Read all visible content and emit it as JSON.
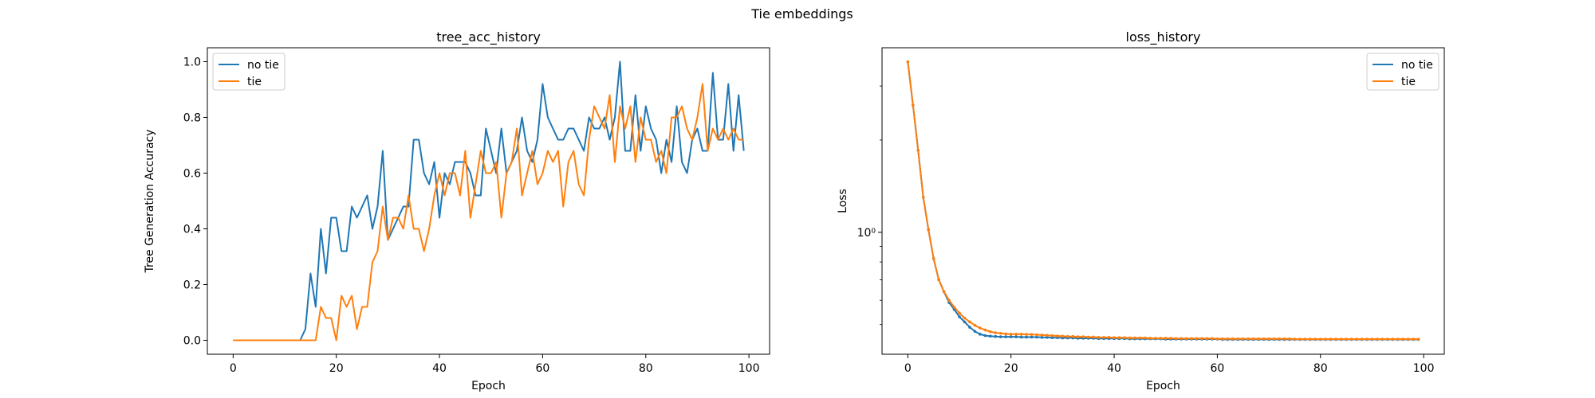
{
  "suptitle": "Tie embeddings",
  "chart_data": [
    {
      "type": "line",
      "title": "tree_acc_history",
      "xlabel": "Epoch",
      "ylabel": "Tree Generation Accuracy",
      "xlim": [
        -5,
        104
      ],
      "ylim": [
        -0.05,
        1.05
      ],
      "xticks": [
        0,
        20,
        40,
        60,
        80,
        100
      ],
      "xtick_labels": [
        "0",
        "20",
        "40",
        "60",
        "80",
        "100"
      ],
      "yticks": [
        0.0,
        0.2,
        0.4,
        0.6,
        0.8,
        1.0
      ],
      "ytick_labels": [
        "0.0",
        "0.2",
        "0.4",
        "0.6",
        "0.8",
        "1.0"
      ],
      "legend_placement": "upper-left",
      "series": [
        {
          "name": "no tie",
          "color": "#1f77b4",
          "x": [
            0,
            1,
            2,
            3,
            4,
            5,
            6,
            7,
            8,
            9,
            10,
            11,
            12,
            13,
            14,
            15,
            16,
            17,
            18,
            19,
            20,
            21,
            22,
            23,
            24,
            25,
            26,
            27,
            28,
            29,
            30,
            31,
            32,
            33,
            34,
            35,
            36,
            37,
            38,
            39,
            40,
            41,
            42,
            43,
            44,
            45,
            46,
            47,
            48,
            49,
            50,
            51,
            52,
            53,
            54,
            55,
            56,
            57,
            58,
            59,
            60,
            61,
            62,
            63,
            64,
            65,
            66,
            67,
            68,
            69,
            70,
            71,
            72,
            73,
            74,
            75,
            76,
            77,
            78,
            79,
            80,
            81,
            82,
            83,
            84,
            85,
            86,
            87,
            88,
            89,
            90,
            91,
            92,
            93,
            94,
            95,
            96,
            97,
            98,
            99
          ],
          "values": [
            0.0,
            0.0,
            0.0,
            0.0,
            0.0,
            0.0,
            0.0,
            0.0,
            0.0,
            0.0,
            0.0,
            0.0,
            0.0,
            0.0,
            0.04,
            0.24,
            0.12,
            0.4,
            0.24,
            0.44,
            0.44,
            0.32,
            0.32,
            0.48,
            0.44,
            0.48,
            0.52,
            0.4,
            0.48,
            0.68,
            0.36,
            0.4,
            0.44,
            0.48,
            0.48,
            0.72,
            0.72,
            0.6,
            0.56,
            0.64,
            0.44,
            0.6,
            0.56,
            0.64,
            0.64,
            0.64,
            0.6,
            0.52,
            0.52,
            0.76,
            0.68,
            0.6,
            0.76,
            0.6,
            0.64,
            0.68,
            0.8,
            0.68,
            0.64,
            0.72,
            0.92,
            0.8,
            0.76,
            0.72,
            0.72,
            0.76,
            0.76,
            0.72,
            0.68,
            0.8,
            0.76,
            0.76,
            0.8,
            0.72,
            0.8,
            1.0,
            0.68,
            0.68,
            0.88,
            0.68,
            0.84,
            0.76,
            0.72,
            0.6,
            0.72,
            0.64,
            0.84,
            0.64,
            0.6,
            0.72,
            0.76,
            0.68,
            0.68,
            0.96,
            0.72,
            0.72,
            0.92,
            0.68,
            0.88,
            0.68
          ]
        },
        {
          "name": "tie",
          "color": "#ff7f0e",
          "x": [
            0,
            1,
            2,
            3,
            4,
            5,
            6,
            7,
            8,
            9,
            10,
            11,
            12,
            13,
            14,
            15,
            16,
            17,
            18,
            19,
            20,
            21,
            22,
            23,
            24,
            25,
            26,
            27,
            28,
            29,
            30,
            31,
            32,
            33,
            34,
            35,
            36,
            37,
            38,
            39,
            40,
            41,
            42,
            43,
            44,
            45,
            46,
            47,
            48,
            49,
            50,
            51,
            52,
            53,
            54,
            55,
            56,
            57,
            58,
            59,
            60,
            61,
            62,
            63,
            64,
            65,
            66,
            67,
            68,
            69,
            70,
            71,
            72,
            73,
            74,
            75,
            76,
            77,
            78,
            79,
            80,
            81,
            82,
            83,
            84,
            85,
            86,
            87,
            88,
            89,
            90,
            91,
            92,
            93,
            94,
            95,
            96,
            97,
            98,
            99
          ],
          "values": [
            0.0,
            0.0,
            0.0,
            0.0,
            0.0,
            0.0,
            0.0,
            0.0,
            0.0,
            0.0,
            0.0,
            0.0,
            0.0,
            0.0,
            0.0,
            0.0,
            0.0,
            0.12,
            0.08,
            0.08,
            0.0,
            0.16,
            0.12,
            0.16,
            0.04,
            0.12,
            0.12,
            0.28,
            0.32,
            0.48,
            0.36,
            0.44,
            0.44,
            0.4,
            0.52,
            0.4,
            0.4,
            0.32,
            0.4,
            0.52,
            0.6,
            0.52,
            0.6,
            0.6,
            0.52,
            0.68,
            0.44,
            0.56,
            0.68,
            0.6,
            0.6,
            0.64,
            0.44,
            0.6,
            0.64,
            0.76,
            0.52,
            0.6,
            0.68,
            0.56,
            0.6,
            0.68,
            0.64,
            0.68,
            0.48,
            0.64,
            0.68,
            0.56,
            0.52,
            0.72,
            0.84,
            0.8,
            0.76,
            0.88,
            0.64,
            0.84,
            0.76,
            0.84,
            0.64,
            0.8,
            0.72,
            0.72,
            0.64,
            0.68,
            0.6,
            0.8,
            0.8,
            0.84,
            0.76,
            0.72,
            0.8,
            0.92,
            0.68,
            0.76,
            0.72,
            0.76,
            0.72,
            0.76,
            0.72,
            0.72
          ]
        }
      ]
    },
    {
      "type": "line",
      "title": "loss_history",
      "xlabel": "Epoch",
      "ylabel": "Loss",
      "yscale": "log",
      "xlim": [
        -5,
        104
      ],
      "ylim": [
        0.4,
        4.0
      ],
      "xticks": [
        0,
        20,
        40,
        60,
        80,
        100
      ],
      "xtick_labels": [
        "0",
        "20",
        "40",
        "60",
        "80",
        "100"
      ],
      "yticks": [
        1.0
      ],
      "ytick_labels": [
        "10⁰"
      ],
      "legend_placement": "upper-right",
      "series": [
        {
          "name": "no tie",
          "color": "#1f77b4",
          "x": [
            0,
            1,
            2,
            3,
            4,
            5,
            6,
            7,
            8,
            9,
            10,
            11,
            12,
            13,
            14,
            15,
            16,
            17,
            18,
            19,
            20,
            21,
            22,
            23,
            24,
            25,
            26,
            27,
            28,
            29,
            30,
            31,
            32,
            33,
            34,
            35,
            36,
            37,
            38,
            39,
            40,
            41,
            42,
            43,
            44,
            45,
            46,
            47,
            48,
            49,
            50,
            51,
            52,
            53,
            54,
            55,
            56,
            57,
            58,
            59,
            60,
            61,
            62,
            63,
            64,
            65,
            66,
            67,
            68,
            69,
            70,
            71,
            72,
            73,
            74,
            75,
            76,
            77,
            78,
            79,
            80,
            81,
            82,
            83,
            84,
            85,
            86,
            87,
            88,
            89,
            90,
            91,
            92,
            93,
            94,
            95,
            96,
            97,
            98,
            99
          ],
          "values": [
            3.6,
            2.6,
            1.85,
            1.3,
            1.02,
            0.82,
            0.7,
            0.64,
            0.59,
            0.56,
            0.53,
            0.51,
            0.49,
            0.475,
            0.465,
            0.46,
            0.458,
            0.457,
            0.456,
            0.456,
            0.456,
            0.456,
            0.455,
            0.455,
            0.455,
            0.455,
            0.454,
            0.454,
            0.453,
            0.453,
            0.452,
            0.452,
            0.452,
            0.451,
            0.451,
            0.451,
            0.451,
            0.45,
            0.45,
            0.45,
            0.45,
            0.45,
            0.45,
            0.449,
            0.449,
            0.449,
            0.449,
            0.449,
            0.449,
            0.449,
            0.448,
            0.448,
            0.448,
            0.448,
            0.448,
            0.448,
            0.448,
            0.448,
            0.448,
            0.448,
            0.448,
            0.447,
            0.447,
            0.447,
            0.447,
            0.447,
            0.447,
            0.447,
            0.447,
            0.447,
            0.447,
            0.447,
            0.447,
            0.447,
            0.447,
            0.447,
            0.447,
            0.447,
            0.447,
            0.447,
            0.447,
            0.447,
            0.447,
            0.447,
            0.447,
            0.447,
            0.447,
            0.447,
            0.447,
            0.447,
            0.447,
            0.447,
            0.447,
            0.447,
            0.447,
            0.447,
            0.447,
            0.447,
            0.447,
            0.447
          ]
        },
        {
          "name": "tie",
          "color": "#ff7f0e",
          "x": [
            0,
            1,
            2,
            3,
            4,
            5,
            6,
            7,
            8,
            9,
            10,
            11,
            12,
            13,
            14,
            15,
            16,
            17,
            18,
            19,
            20,
            21,
            22,
            23,
            24,
            25,
            26,
            27,
            28,
            29,
            30,
            31,
            32,
            33,
            34,
            35,
            36,
            37,
            38,
            39,
            40,
            41,
            42,
            43,
            44,
            45,
            46,
            47,
            48,
            49,
            50,
            51,
            52,
            53,
            54,
            55,
            56,
            57,
            58,
            59,
            60,
            61,
            62,
            63,
            64,
            65,
            66,
            67,
            68,
            69,
            70,
            71,
            72,
            73,
            74,
            75,
            76,
            77,
            78,
            79,
            80,
            81,
            82,
            83,
            84,
            85,
            86,
            87,
            88,
            89,
            90,
            91,
            92,
            93,
            94,
            95,
            96,
            97,
            98,
            99
          ],
          "values": [
            3.6,
            2.6,
            1.85,
            1.3,
            1.02,
            0.82,
            0.7,
            0.64,
            0.6,
            0.57,
            0.545,
            0.525,
            0.51,
            0.497,
            0.487,
            0.48,
            0.474,
            0.47,
            0.468,
            0.466,
            0.465,
            0.465,
            0.465,
            0.464,
            0.464,
            0.463,
            0.462,
            0.461,
            0.46,
            0.459,
            0.458,
            0.457,
            0.457,
            0.456,
            0.456,
            0.455,
            0.455,
            0.454,
            0.454,
            0.454,
            0.453,
            0.453,
            0.453,
            0.452,
            0.452,
            0.452,
            0.452,
            0.451,
            0.451,
            0.451,
            0.451,
            0.451,
            0.45,
            0.45,
            0.45,
            0.45,
            0.45,
            0.45,
            0.45,
            0.45,
            0.449,
            0.449,
            0.449,
            0.449,
            0.449,
            0.449,
            0.449,
            0.449,
            0.449,
            0.449,
            0.449,
            0.449,
            0.449,
            0.449,
            0.449,
            0.448,
            0.448,
            0.448,
            0.448,
            0.448,
            0.448,
            0.448,
            0.448,
            0.448,
            0.448,
            0.448,
            0.448,
            0.448,
            0.448,
            0.448,
            0.448,
            0.448,
            0.448,
            0.448,
            0.448,
            0.448,
            0.448,
            0.448,
            0.448,
            0.448
          ]
        }
      ]
    }
  ]
}
